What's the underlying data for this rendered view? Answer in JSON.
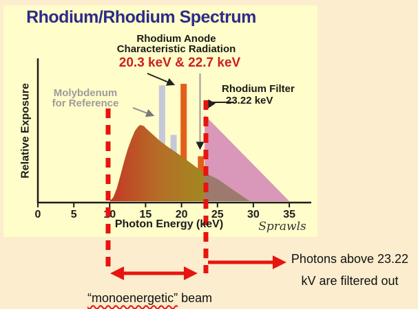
{
  "slide": {
    "title": "Rhodium/Rhodium Spectrum",
    "colors": {
      "background": "#FBEDCE",
      "panel": "#FFFDC9",
      "title_navy": "#2C2C87",
      "red_accent": "#E8140F",
      "kev_label_red": "#CC2020",
      "gray_text": "#9C9C9C",
      "pink_area": "#D997BA",
      "overlap_area": "#9C7B6E",
      "gray_bar": "#C4C8D8",
      "orange_bar": "#E0601A",
      "spectrum_gradient": [
        "#C33B25",
        "#B56E27",
        "#9F8B1F"
      ]
    }
  },
  "chart": {
    "ylabel": "Relative Exposure",
    "xlabel": "Photon Energy (keV)",
    "signature": "Sprawls",
    "annotations": {
      "anode_line1": "Rhodium Anode",
      "anode_line2": "Characteristic Radiation",
      "anode_kev": "20.3 keV & 22.7 keV",
      "moly_line1": "Molybdenum",
      "moly_line2": "for Reference",
      "filter_line1": "Rhodium Filter",
      "filter_line2": "23.22  keV"
    }
  },
  "notes": {
    "filtered_line1": "Photons above 23.22",
    "filtered_line2": "kV are filtered out",
    "mono_quoted": "“monoenergetic”",
    "mono_rest": " beam"
  },
  "chart_data": {
    "type": "area",
    "title": "Rhodium/Rhodium Spectrum",
    "xlabel": "Photon Energy (keV)",
    "ylabel": "Relative Exposure",
    "x_ticks": [
      0,
      5,
      10,
      15,
      20,
      25,
      30,
      35
    ],
    "xlim": [
      0,
      38
    ],
    "grid": false,
    "cutoff_keV": 23.22,
    "mono_band_keV": [
      10,
      23.22
    ],
    "series": [
      {
        "name": "filtered_rhodium_spectrum",
        "points": [
          [
            10,
            0
          ],
          [
            10.5,
            0.05
          ],
          [
            11,
            0.17
          ],
          [
            11.5,
            0.34
          ],
          [
            12,
            0.52
          ],
          [
            12.5,
            0.68
          ],
          [
            13,
            0.81
          ],
          [
            13.5,
            0.92
          ],
          [
            14,
            0.985
          ],
          [
            14.3,
            1.0
          ],
          [
            14.8,
            0.985
          ],
          [
            15,
            0.96
          ],
          [
            16,
            0.875
          ],
          [
            17,
            0.79
          ],
          [
            18,
            0.72
          ],
          [
            19,
            0.655
          ],
          [
            20,
            0.59
          ],
          [
            21,
            0.52
          ],
          [
            22,
            0.45
          ],
          [
            23.22,
            0.37
          ]
        ]
      },
      {
        "name": "spectrum_tail_beyond_cutoff",
        "points": [
          [
            23.22,
            0.37
          ],
          [
            25,
            0.29
          ],
          [
            27,
            0.16
          ],
          [
            29.5,
            0
          ]
        ]
      },
      {
        "name": "photons_filtered_out",
        "points": [
          [
            23.22,
            1.13
          ],
          [
            35,
            0
          ]
        ]
      }
    ],
    "characteristic_lines": [
      {
        "material": "Mo",
        "keV": 17.3,
        "height": 1.52,
        "color": "#C4C8D8"
      },
      {
        "material": "Mo",
        "keV": 18.9,
        "height": 0.87,
        "color": "#C4C8D8"
      },
      {
        "material": "Rh",
        "keV": 20.3,
        "height": 1.54,
        "color": "#E0601A"
      },
      {
        "material": "Rh",
        "keV": 22.7,
        "height": 0.59,
        "color": "#E0601A"
      }
    ]
  }
}
